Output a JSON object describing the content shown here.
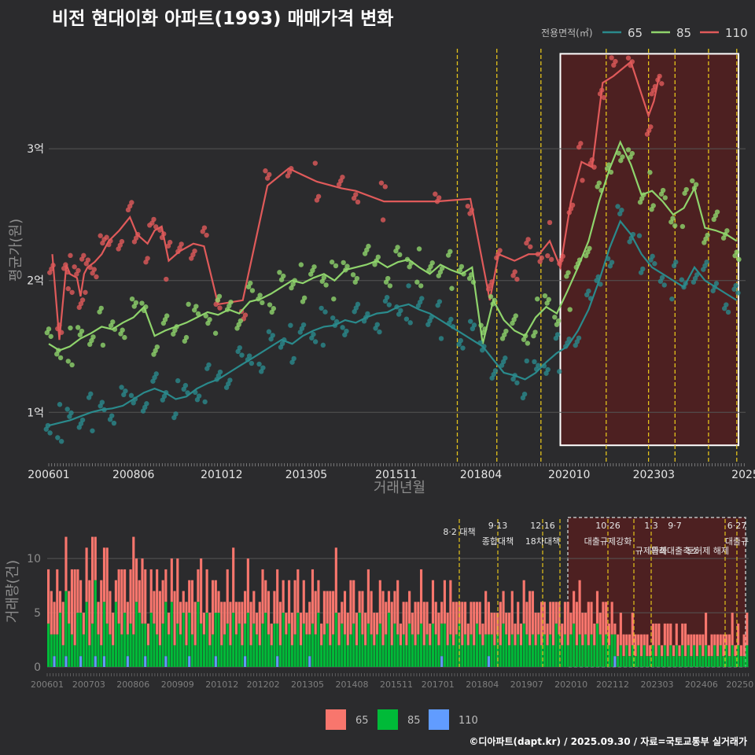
{
  "title": "비전 현대이화 아파트(1993) 매매가격 변화",
  "footer": "©디아파트(dapt.kr) / 2025.09.30 / 자료=국토교통부 실거래가",
  "colors": {
    "s65": "#2a8a8c",
    "s85": "#8fd46c",
    "s110": "#e05a5a",
    "b65": "#f8766d",
    "b85": "#00ba38",
    "b110": "#619cff",
    "policy": "#e3c21b"
  },
  "chart_data": [
    {
      "type": "line",
      "title": "비전 현대이화 아파트(1993) 매매가격 변화",
      "xlabel": "거래년월",
      "ylabel": "평균가(원)",
      "x_tick_labels": [
        "200601",
        "200806",
        "201012",
        "201305",
        "201511",
        "201804",
        "202010",
        "202303",
        "2025"
      ],
      "y_ticks": [
        {
          "value": 1,
          "label": "1억"
        },
        {
          "value": 2,
          "label": "2억"
        },
        {
          "value": 3,
          "label": "3억"
        }
      ],
      "ylim": [
        0.62,
        3.8
      ],
      "xlim": [
        2006.0,
        2025.75
      ],
      "legend": {
        "title": "전용면적(㎡)",
        "placement": "top-right",
        "entries": [
          "65",
          "85",
          "110"
        ]
      },
      "highlight_range": [
        2020.5,
        2025.55
      ],
      "policy_dates": [
        2017.58,
        2018.7,
        2019.95,
        2021.8,
        2023.0,
        2023.75,
        2024.7,
        2025.5
      ],
      "series": [
        {
          "name": "110",
          "x": [
            2006.1,
            2006.3,
            2006.5,
            2006.6,
            2006.8,
            2006.9,
            2007.0,
            2007.1,
            2007.3,
            2007.5,
            2007.7,
            2008.0,
            2008.3,
            2008.5,
            2008.8,
            2009.0,
            2009.2,
            2009.4,
            2009.7,
            2010.1,
            2010.4,
            2010.8,
            2011.5,
            2012.2,
            2012.8,
            2013.6,
            2014.3,
            2014.7,
            2015.5,
            2017.0,
            2017.95,
            2018.5,
            2018.75,
            2019.2,
            2019.6,
            2019.9,
            2020.2,
            2020.5,
            2020.8,
            2021.1,
            2021.4,
            2021.7,
            2022.0,
            2022.5,
            2023.0,
            2023.15,
            2023.3
          ],
          "values": [
            2.2,
            1.55,
            2.12,
            2.05,
            2.02,
            1.88,
            2.05,
            2.1,
            2.14,
            2.2,
            2.3,
            2.38,
            2.48,
            2.35,
            2.28,
            2.38,
            2.41,
            2.15,
            2.22,
            2.28,
            2.26,
            1.82,
            1.85,
            2.72,
            2.85,
            2.75,
            2.7,
            2.68,
            2.6,
            2.6,
            2.62,
            1.85,
            2.2,
            2.15,
            2.2,
            2.2,
            2.3,
            2.1,
            2.6,
            2.9,
            2.86,
            3.5,
            3.55,
            3.66,
            3.25,
            3.36,
            3.55
          ]
        },
        {
          "name": "85",
          "x": [
            2006.0,
            2006.3,
            2006.6,
            2006.9,
            2007.2,
            2007.5,
            2007.8,
            2008.1,
            2008.4,
            2008.7,
            2009.0,
            2009.3,
            2009.6,
            2009.9,
            2010.2,
            2010.5,
            2010.8,
            2011.1,
            2011.4,
            2011.7,
            2012.0,
            2012.3,
            2012.6,
            2012.9,
            2013.2,
            2013.5,
            2013.8,
            2014.1,
            2014.4,
            2014.7,
            2015.0,
            2015.3,
            2015.6,
            2015.9,
            2016.2,
            2016.5,
            2016.8,
            2017.1,
            2017.4,
            2017.7,
            2018.0,
            2018.3,
            2018.6,
            2018.9,
            2019.2,
            2019.5,
            2019.8,
            2020.1,
            2020.4,
            2020.7,
            2021.0,
            2021.3,
            2021.6,
            2021.9,
            2022.2,
            2022.5,
            2022.8,
            2023.1,
            2023.4,
            2023.7,
            2024.0,
            2024.3,
            2024.6,
            2024.9,
            2025.2,
            2025.5
          ],
          "values": [
            1.52,
            1.47,
            1.5,
            1.56,
            1.6,
            1.65,
            1.63,
            1.68,
            1.72,
            1.8,
            1.58,
            1.62,
            1.65,
            1.68,
            1.72,
            1.76,
            1.74,
            1.78,
            1.75,
            1.84,
            1.86,
            1.9,
            1.95,
            2.0,
            1.98,
            2.02,
            2.05,
            2.0,
            2.08,
            2.1,
            2.12,
            2.15,
            2.1,
            2.14,
            2.16,
            2.1,
            2.05,
            2.12,
            2.08,
            2.05,
            2.1,
            1.52,
            1.85,
            1.7,
            1.62,
            1.58,
            1.72,
            1.8,
            1.75,
            1.92,
            2.1,
            2.3,
            2.6,
            2.85,
            3.05,
            2.88,
            2.65,
            2.68,
            2.6,
            2.5,
            2.55,
            2.7,
            2.4,
            2.38,
            2.35,
            2.3
          ]
        },
        {
          "name": "65",
          "x": [
            2006.0,
            2006.3,
            2006.6,
            2006.9,
            2007.2,
            2007.5,
            2007.8,
            2008.1,
            2008.4,
            2008.7,
            2009.0,
            2009.3,
            2009.6,
            2009.9,
            2010.2,
            2010.5,
            2010.8,
            2011.1,
            2011.4,
            2011.7,
            2012.0,
            2012.3,
            2012.6,
            2012.9,
            2013.2,
            2013.5,
            2013.8,
            2014.1,
            2014.4,
            2014.7,
            2015.0,
            2015.3,
            2015.6,
            2015.9,
            2016.2,
            2016.5,
            2016.8,
            2017.1,
            2017.4,
            2017.7,
            2018.0,
            2018.3,
            2018.6,
            2018.9,
            2019.2,
            2019.5,
            2019.8,
            2020.1,
            2020.4,
            2020.7,
            2021.0,
            2021.3,
            2021.6,
            2021.9,
            2022.2,
            2022.5,
            2022.8,
            2023.1,
            2023.4,
            2023.7,
            2024.0,
            2024.3,
            2024.6,
            2024.9,
            2025.2,
            2025.5
          ],
          "values": [
            0.9,
            0.92,
            0.94,
            0.97,
            1.0,
            1.02,
            1.03,
            1.05,
            1.1,
            1.15,
            1.18,
            1.15,
            1.1,
            1.12,
            1.18,
            1.22,
            1.25,
            1.3,
            1.35,
            1.4,
            1.45,
            1.5,
            1.55,
            1.52,
            1.58,
            1.62,
            1.65,
            1.66,
            1.7,
            1.68,
            1.72,
            1.75,
            1.76,
            1.8,
            1.82,
            1.78,
            1.75,
            1.7,
            1.65,
            1.6,
            1.55,
            1.5,
            1.4,
            1.3,
            1.28,
            1.25,
            1.3,
            1.38,
            1.45,
            1.5,
            1.62,
            1.78,
            2.0,
            2.25,
            2.45,
            2.35,
            2.2,
            2.1,
            2.05,
            2.0,
            1.95,
            2.1,
            2.0,
            1.95,
            1.9,
            1.85
          ]
        }
      ]
    },
    {
      "type": "bar",
      "title": "",
      "xlabel": "",
      "ylabel": "거래량(건)",
      "stacked": true,
      "ylim": [
        0,
        14
      ],
      "y_ticks": [
        0,
        5,
        10
      ],
      "x_tick_labels": [
        "200601",
        "200703",
        "200806",
        "200909",
        "201012",
        "201202",
        "201305",
        "201408",
        "201511",
        "201701",
        "201804",
        "201907",
        "202010",
        "202112",
        "202303",
        "202406",
        "20250"
      ],
      "legend": {
        "placement": "bottom",
        "entries": [
          "65",
          "85",
          "110"
        ]
      },
      "series_names": [
        "65",
        "85",
        "110"
      ],
      "monthly": {
        "start": "2006-01",
        "b65": [
          5,
          4,
          3,
          6,
          2,
          4,
          5,
          3,
          6,
          7,
          4,
          3,
          2,
          5,
          6,
          8,
          4,
          3,
          6,
          5,
          7,
          4,
          3,
          2,
          5,
          6,
          4,
          3,
          5,
          9,
          4,
          3,
          6,
          5,
          2,
          4,
          3,
          6,
          5,
          4,
          3,
          2,
          4,
          5,
          6,
          3,
          2,
          4,
          3,
          5,
          4,
          3,
          6,
          2,
          4,
          3,
          5,
          3,
          2,
          4,
          3,
          5,
          4,
          6,
          3,
          2,
          4,
          3,
          5,
          4,
          3,
          2,
          4,
          5,
          3,
          4,
          2,
          3,
          5,
          4,
          3,
          2,
          4,
          3,
          5,
          4,
          3,
          4,
          2,
          3,
          5,
          4,
          3,
          2,
          4,
          3,
          5,
          4,
          6,
          3,
          2,
          4,
          3,
          5,
          4,
          3,
          2,
          4,
          3,
          5,
          4,
          3,
          2,
          4,
          5,
          3,
          2,
          4,
          3,
          5,
          2,
          3,
          4,
          3,
          2,
          4,
          3,
          5,
          4,
          3,
          2,
          4,
          3,
          3,
          2,
          4,
          3,
          5,
          4,
          3,
          2,
          4,
          3,
          2,
          3,
          4,
          2,
          3,
          2,
          4,
          3,
          2,
          3,
          2,
          4,
          3,
          2,
          3,
          4,
          2,
          3,
          2,
          4,
          3,
          5,
          4,
          3,
          2,
          4,
          3,
          2,
          3,
          4,
          2,
          3,
          2,
          3,
          4,
          2,
          3,
          4,
          5,
          3,
          2,
          4,
          3,
          2,
          3,
          2,
          4,
          3,
          2,
          3,
          1,
          2,
          3,
          2,
          1,
          2,
          3,
          2,
          1,
          2,
          1,
          2,
          1,
          2,
          3,
          2,
          1,
          2,
          3,
          2,
          1,
          2,
          1,
          2,
          3,
          1,
          2,
          1,
          2,
          1,
          2,
          3,
          1,
          2,
          1,
          2,
          1,
          2,
          1,
          2,
          3,
          1,
          2,
          1,
          2,
          3
        ],
        "b85": [
          4,
          3,
          2,
          3,
          5,
          2,
          6,
          4,
          3,
          2,
          5,
          4,
          3,
          6,
          2,
          4,
          7,
          3,
          2,
          5,
          4,
          3,
          2,
          6,
          4,
          3,
          5,
          2,
          4,
          3,
          6,
          5,
          4,
          3,
          2,
          5,
          4,
          3,
          2,
          4,
          5,
          3,
          6,
          2,
          4,
          3,
          5,
          2,
          4,
          3,
          2,
          6,
          4,
          3,
          5,
          2,
          3,
          4,
          5,
          2,
          3,
          4,
          2,
          5,
          3,
          4,
          2,
          3,
          5,
          2,
          4,
          3,
          2,
          4,
          5,
          3,
          2,
          4,
          3,
          2,
          5,
          3,
          4,
          2,
          3,
          5,
          2,
          4,
          3,
          2,
          4,
          3,
          5,
          2,
          3,
          4,
          2,
          3,
          5,
          2,
          4,
          3,
          2,
          3,
          4,
          2,
          5,
          3,
          2,
          4,
          3,
          2,
          3,
          4,
          2,
          3,
          5,
          2,
          4,
          3,
          2,
          3,
          2,
          4,
          3,
          2,
          3,
          4,
          2,
          3,
          2,
          4,
          3,
          2,
          3,
          4,
          2,
          3,
          2,
          3,
          4,
          2,
          3,
          2,
          3,
          2,
          4,
          3,
          2,
          3,
          2,
          3,
          2,
          3,
          2,
          4,
          3,
          2,
          3,
          2,
          3,
          2,
          4,
          3,
          2,
          3,
          2,
          3,
          2,
          3,
          2,
          3,
          2,
          4,
          3,
          2,
          3,
          2,
          3,
          4,
          2,
          3,
          2,
          3,
          2,
          3,
          2,
          4,
          3,
          2,
          3,
          2,
          3,
          2,
          1,
          2,
          1,
          2,
          1,
          2,
          1,
          2,
          1,
          2,
          1,
          1,
          2,
          1,
          2,
          1,
          2,
          1,
          2,
          1,
          2,
          1,
          2,
          1,
          2,
          1,
          2,
          1,
          2,
          1,
          2,
          1,
          1,
          2,
          1,
          2,
          1,
          2,
          1,
          2,
          1,
          2,
          1,
          1,
          2
        ],
        "b110": [
          0,
          0,
          1,
          0,
          0,
          0,
          1,
          0,
          0,
          0,
          0,
          1,
          0,
          0,
          0,
          0,
          1,
          0,
          0,
          1,
          0,
          0,
          0,
          0,
          0,
          0,
          0,
          1,
          0,
          0,
          0,
          0,
          0,
          1,
          0,
          0,
          0,
          0,
          0,
          0,
          1,
          0,
          0,
          0,
          0,
          0,
          0,
          0,
          1,
          0,
          0,
          0,
          0,
          0,
          0,
          0,
          0,
          1,
          0,
          0,
          0,
          0,
          0,
          0,
          0,
          0,
          0,
          1,
          0,
          0,
          0,
          0,
          0,
          0,
          0,
          0,
          0,
          0,
          1,
          0,
          0,
          0,
          0,
          0,
          0,
          0,
          0,
          0,
          0,
          1,
          0,
          0,
          0,
          0,
          0,
          0,
          0,
          0,
          0,
          0,
          0,
          0,
          0,
          0,
          0,
          0,
          0,
          0,
          0,
          0,
          0,
          0,
          0,
          0,
          0,
          0,
          0,
          0,
          0,
          0,
          0,
          0,
          0,
          0,
          0,
          0,
          0,
          0,
          0,
          0,
          0,
          0,
          0,
          0,
          1,
          0,
          0,
          0,
          0,
          0,
          0,
          0,
          0,
          0,
          0,
          0,
          0,
          0,
          0,
          0,
          1,
          0,
          0,
          0,
          0,
          0,
          0,
          0,
          0,
          0,
          0,
          0,
          0,
          0,
          0,
          0,
          0,
          0,
          0,
          0,
          0,
          0,
          0,
          0,
          0,
          0,
          0,
          0,
          0,
          0,
          0,
          0,
          0,
          0,
          0,
          0,
          0,
          0,
          0,
          0,
          0,
          0,
          0,
          1,
          0,
          0,
          0,
          0,
          0,
          0,
          0,
          0,
          0,
          0,
          0,
          0,
          0,
          0,
          0,
          0,
          0,
          0,
          0,
          0,
          0,
          0,
          0,
          0,
          0,
          0,
          0,
          0,
          0,
          0,
          0,
          0,
          0,
          0,
          0,
          0,
          0,
          0,
          0,
          0,
          0,
          0,
          0,
          0,
          0,
          0,
          0,
          0,
          0
        ]
      },
      "annotations": [
        {
          "date": "8·2 대책",
          "label": ""
        },
        {
          "date": "9·13",
          "label": "종합대책"
        },
        {
          "date": "12·16",
          "label": "18차대책"
        },
        {
          "date": "10·26",
          "label": "대출규제강화"
        },
        {
          "date": "1·3",
          "label": "규제완화"
        },
        {
          "date": "9·7",
          "label": "특례대출축소"
        },
        {
          "date": "",
          "label": "토허제 해제"
        },
        {
          "date": "6·27",
          "label": "대출규"
        }
      ]
    }
  ]
}
